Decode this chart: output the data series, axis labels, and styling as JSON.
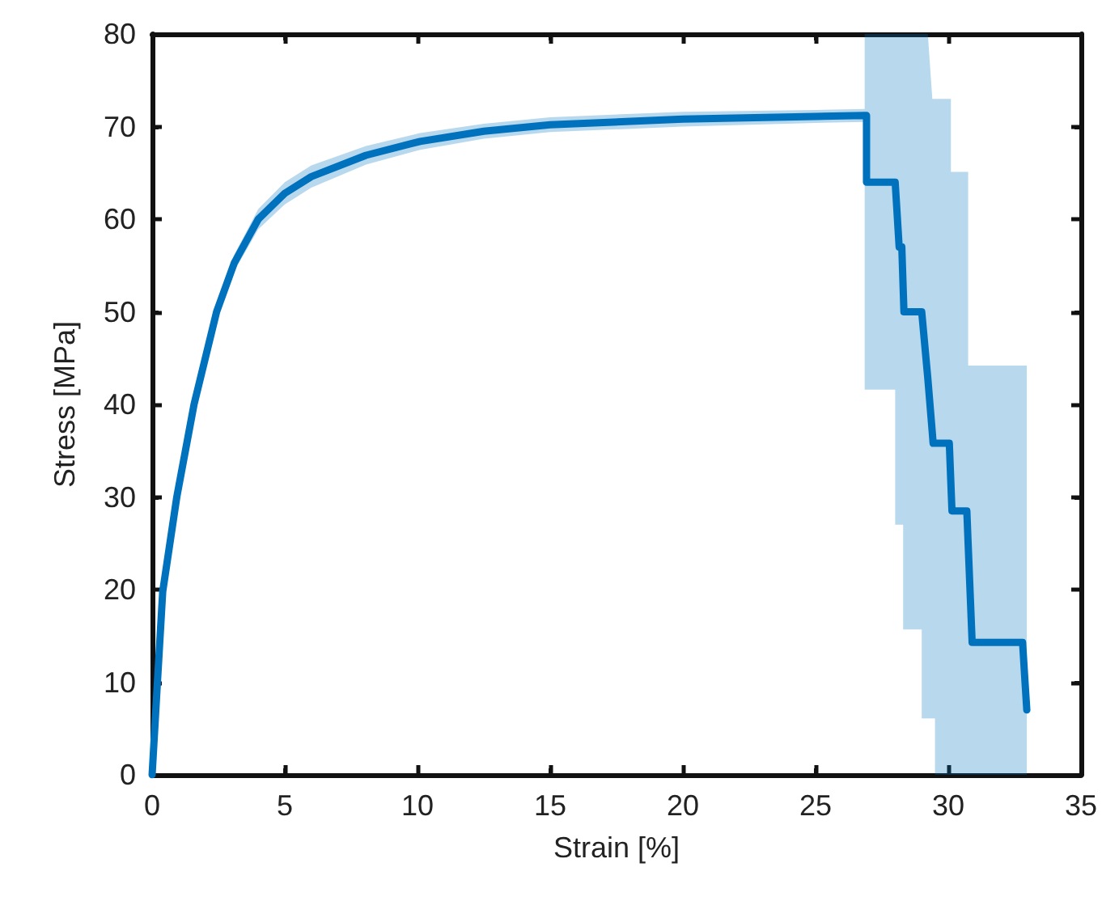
{
  "chart_data": {
    "type": "line",
    "xlabel": "Strain [%]",
    "ylabel": "Stress [MPa]",
    "xlim": [
      0,
      35
    ],
    "ylim": [
      0,
      80
    ],
    "xticks": [
      0,
      5,
      10,
      15,
      20,
      25,
      30,
      35
    ],
    "yticks": [
      0,
      10,
      20,
      30,
      40,
      50,
      60,
      70,
      80
    ],
    "series": [
      {
        "color": "#0072bd",
        "x": [
          0,
          0.1,
          0.2,
          0.4,
          0.93,
          1.58,
          2.43,
          3.1,
          4.0,
          5.0,
          6.0,
          8.06,
          10.1,
          12.5,
          15,
          20,
          25,
          26.85,
          26.85,
          26.92,
          26.92,
          28.0,
          28.0,
          28.15,
          28.25,
          28.3,
          28.3,
          28.33,
          29.0,
          29.0,
          29.02,
          29.23,
          29.4,
          29.43,
          29.5,
          29.5,
          30.04,
          30.1,
          30.1,
          30.14,
          30.7,
          30.75,
          30.75,
          30.9,
          32.8,
          32.9,
          32.96
        ],
        "values": [
          0,
          5,
          10,
          19.8,
          30,
          40,
          50,
          55.3,
          60,
          62.8,
          64.6,
          66.9,
          68.4,
          69.5,
          70.2,
          70.8,
          71.1,
          71.2,
          71.2,
          71.2,
          64.0,
          64.0,
          64.0,
          57.0,
          57.0,
          52.6,
          52.6,
          50.0,
          50.0,
          50.0,
          50.0,
          42.8,
          36.9,
          35.8,
          35.8,
          35.8,
          35.8,
          31.4,
          31.4,
          28.5,
          28.5,
          24.9,
          24.9,
          14.3,
          14.3,
          9.7,
          7.0
        ],
        "lower": [
          0,
          4.5,
          9.2,
          19,
          29.2,
          39.2,
          49.2,
          54.4,
          58.9,
          61.6,
          63.4,
          65.9,
          67.5,
          68.7,
          69.4,
          70.0,
          70.4,
          70.5,
          41.6,
          41.6,
          41.6,
          41.6,
          27.0,
          27.0,
          27.0,
          27.0,
          15.7,
          15.7,
          15.7,
          6.1,
          6.1,
          6.1,
          6.1,
          6.1,
          6.1,
          0,
          0,
          0,
          0,
          0,
          0,
          0,
          0,
          0,
          0,
          0,
          0
        ],
        "upper": [
          0,
          5.5,
          10.8,
          20.6,
          30.8,
          40.8,
          50.8,
          56.2,
          61.1,
          64.0,
          65.8,
          67.9,
          69.3,
          70.3,
          71.0,
          71.6,
          71.8,
          71.9,
          80,
          80,
          80,
          80,
          80,
          80,
          80,
          80,
          80,
          80,
          80,
          80,
          80,
          80,
          73,
          73,
          73,
          73,
          73,
          73,
          65.1,
          65.1,
          65.1,
          65.1,
          44.2,
          44.2,
          44.2,
          44.2,
          44.2
        ]
      }
    ]
  }
}
